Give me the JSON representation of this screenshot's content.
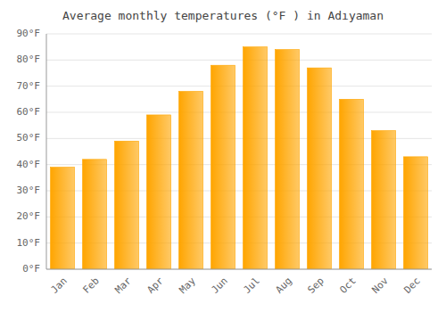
{
  "chart_data": {
    "type": "bar",
    "title": "Average monthly temperatures (°F ) in Adıyaman",
    "categories": [
      "Jan",
      "Feb",
      "Mar",
      "Apr",
      "May",
      "Jun",
      "Jul",
      "Aug",
      "Sep",
      "Oct",
      "Nov",
      "Dec"
    ],
    "values": [
      39,
      42,
      49,
      59,
      68,
      78,
      85,
      84,
      77,
      65,
      53,
      43
    ],
    "color": "#FFA500",
    "ylim": [
      0,
      90
    ],
    "yticks": [
      {
        "value": 0,
        "label": "0°F"
      },
      {
        "value": 10,
        "label": "10°F"
      },
      {
        "value": 20,
        "label": "20°F"
      },
      {
        "value": 30,
        "label": "30°F"
      },
      {
        "value": 40,
        "label": "40°F"
      },
      {
        "value": 50,
        "label": "50°F"
      },
      {
        "value": 60,
        "label": "60°F"
      },
      {
        "value": 70,
        "label": "70°F"
      },
      {
        "value": 80,
        "label": "80°F"
      },
      {
        "value": 90,
        "label": "90°F"
      }
    ],
    "grid": true
  }
}
